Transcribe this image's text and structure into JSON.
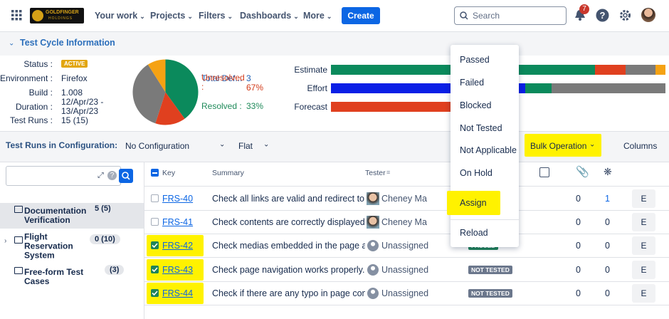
{
  "nav": {
    "logo": [
      "GOLDFINGER",
      "HOLDINGS"
    ],
    "items": [
      "Your work",
      "Projects",
      "Filters",
      "Dashboards",
      "More"
    ],
    "create": "Create",
    "search": "Search",
    "notifications": 7
  },
  "cycle": {
    "title": "Test Cycle Information",
    "fields": [
      {
        "label": "Status :",
        "value": "ACTIVE"
      },
      {
        "label": "Environment :",
        "value": "Firefox"
      },
      {
        "label": "Build :",
        "value": "1.008"
      },
      {
        "label": "Duration :",
        "value": "12/Apr/23 - 13/Apr/23"
      },
      {
        "label": "Test Runs :",
        "value": "15 (15)"
      }
    ],
    "pie": [
      {
        "value": 40,
        "color": "#0b8a5c"
      },
      {
        "value": 15,
        "color": "#e0401f"
      },
      {
        "value": 36,
        "color": "#7a7a7a"
      },
      {
        "value": 9,
        "color": "#f5a213"
      }
    ],
    "defects": [
      {
        "label": "Total Def...",
        "value": "3",
        "color": "#1d5fb4"
      },
      {
        "label": "Unresolved :",
        "value": "67%",
        "color": "#d23b1a"
      },
      {
        "label": "Resolved :",
        "value": "33%",
        "color": "#1f8a5a"
      }
    ],
    "progress": [
      {
        "label": "Estimate",
        "segments": [
          {
            "value": 79,
            "color": "#0b8a5c"
          },
          {
            "value": 9,
            "color": "#e0401f"
          },
          {
            "value": 9,
            "color": "#7a7a7a"
          },
          {
            "value": 3,
            "color": "#f5a213"
          }
        ]
      },
      {
        "label": "Effort",
        "segments": [
          {
            "value": 58,
            "color": "#0a1fe6"
          },
          {
            "value": 8,
            "color": "#0b8a5c"
          },
          {
            "value": 34,
            "color": "#7a7a7a"
          }
        ]
      },
      {
        "label": "Forecast",
        "segments": [
          {
            "value": 40,
            "color": "#e0401f"
          }
        ]
      }
    ]
  },
  "toolbar": {
    "label": "Test Runs in Configuration:",
    "configuration": "No Configuration",
    "view": "Flat",
    "bulk": "Bulk Operation",
    "columns": "Columns"
  },
  "tree": [
    {
      "name": "Documentation Verification",
      "count": "5 (5)",
      "selected": true
    },
    {
      "name": "Flight Reservation System",
      "count": "0 (10)",
      "selected": false
    },
    {
      "name": "Free-form Test Cases",
      "count": "(3)",
      "selected": false
    }
  ],
  "table": {
    "headers": [
      "Key",
      "Summary",
      "Tester"
    ],
    "rows": [
      {
        "key": "FRS-40",
        "summary": "Check all links are valid and redirect to co",
        "tester": "Cheney Ma",
        "status": null,
        "c1": 0,
        "c2": 1,
        "action": "E",
        "checked": false,
        "highlight": false
      },
      {
        "key": "FRS-41",
        "summary": "Check contents are correctly displayed.",
        "tester": "Cheney Ma",
        "status": null,
        "c1": 0,
        "c2": 0,
        "action": "E",
        "checked": false,
        "highlight": false
      },
      {
        "key": "FRS-42",
        "summary": "Check medias embedded in the page are l",
        "tester": "Unassigned",
        "status": "PASSED",
        "c1": 0,
        "c2": 0,
        "action": "E",
        "checked": true,
        "highlight": true
      },
      {
        "key": "FRS-43",
        "summary": "Check page navigation works properly.",
        "tester": "Unassigned",
        "status": "NOT TESTED",
        "c1": 0,
        "c2": 0,
        "action": "E",
        "checked": true,
        "highlight": true
      },
      {
        "key": "FRS-44",
        "summary": "Check if there are any typo in page conten",
        "tester": "Unassigned",
        "status": "NOT TESTED",
        "c1": 0,
        "c2": 0,
        "action": "E",
        "checked": true,
        "highlight": true
      }
    ]
  },
  "menu": [
    "Passed",
    "Failed",
    "Blocked",
    "Not Tested",
    "Not Applicable",
    "On Hold",
    "Assign",
    "Reload"
  ]
}
